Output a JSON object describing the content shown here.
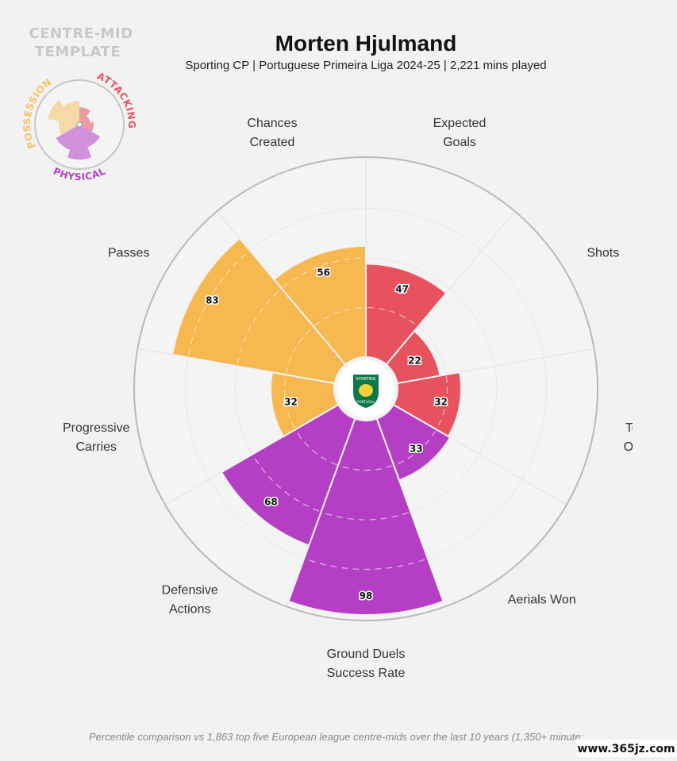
{
  "header": {
    "title": "Morten Hjulmand",
    "subtitle": "Sporting CP | Portuguese Primeira Liga 2024-25 | 2,221 mins played"
  },
  "template": {
    "line1": "CENTRE-MID",
    "line2": "TEMPLATE",
    "categories": [
      {
        "name": "POSSESSION",
        "color": "#f6c366"
      },
      {
        "name": "ATTACKING",
        "color": "#e8525e"
      },
      {
        "name": "PHYSICAL",
        "color": "#b53fc4"
      }
    ]
  },
  "club_logo": {
    "icon": "sporting-cp-crest",
    "text_top": "SPORTING",
    "text_bottom": "PORTUGAL",
    "color": "#0a7a4a"
  },
  "colors": {
    "possession": "#f6b84f",
    "attacking": "#e8525e",
    "physical": "#b53fc4",
    "background": "#f2f2f2"
  },
  "chart_data": {
    "type": "polar_area",
    "metric": "percentile",
    "range": [
      0,
      100
    ],
    "segments": [
      {
        "label": [
          "Expected",
          "Goals"
        ],
        "value": 47,
        "category": "attacking"
      },
      {
        "label": [
          "Shots"
        ],
        "value": 22,
        "category": "attacking"
      },
      {
        "label": [
          "Tou",
          "Opp"
        ],
        "value": 32,
        "category": "attacking"
      },
      {
        "label": [
          "Aerials Won"
        ],
        "value": 33,
        "category": "physical"
      },
      {
        "label": [
          "Ground Duels",
          "Success Rate"
        ],
        "value": 98,
        "category": "physical"
      },
      {
        "label": [
          "Defensive",
          "Actions"
        ],
        "value": 68,
        "category": "physical"
      },
      {
        "label": [
          "Progressive",
          "Carries"
        ],
        "value": 32,
        "category": "possession"
      },
      {
        "label": [
          "Passes"
        ],
        "value": 83,
        "category": "possession"
      },
      {
        "label": [
          "Chances",
          "Created"
        ],
        "value": 56,
        "category": "possession"
      }
    ]
  },
  "footer": {
    "note": "Percentile comparison vs 1,863 top five European league centre-mids over the last 10 years (1,350+ minute:",
    "watermark": "www.365jz.com"
  }
}
